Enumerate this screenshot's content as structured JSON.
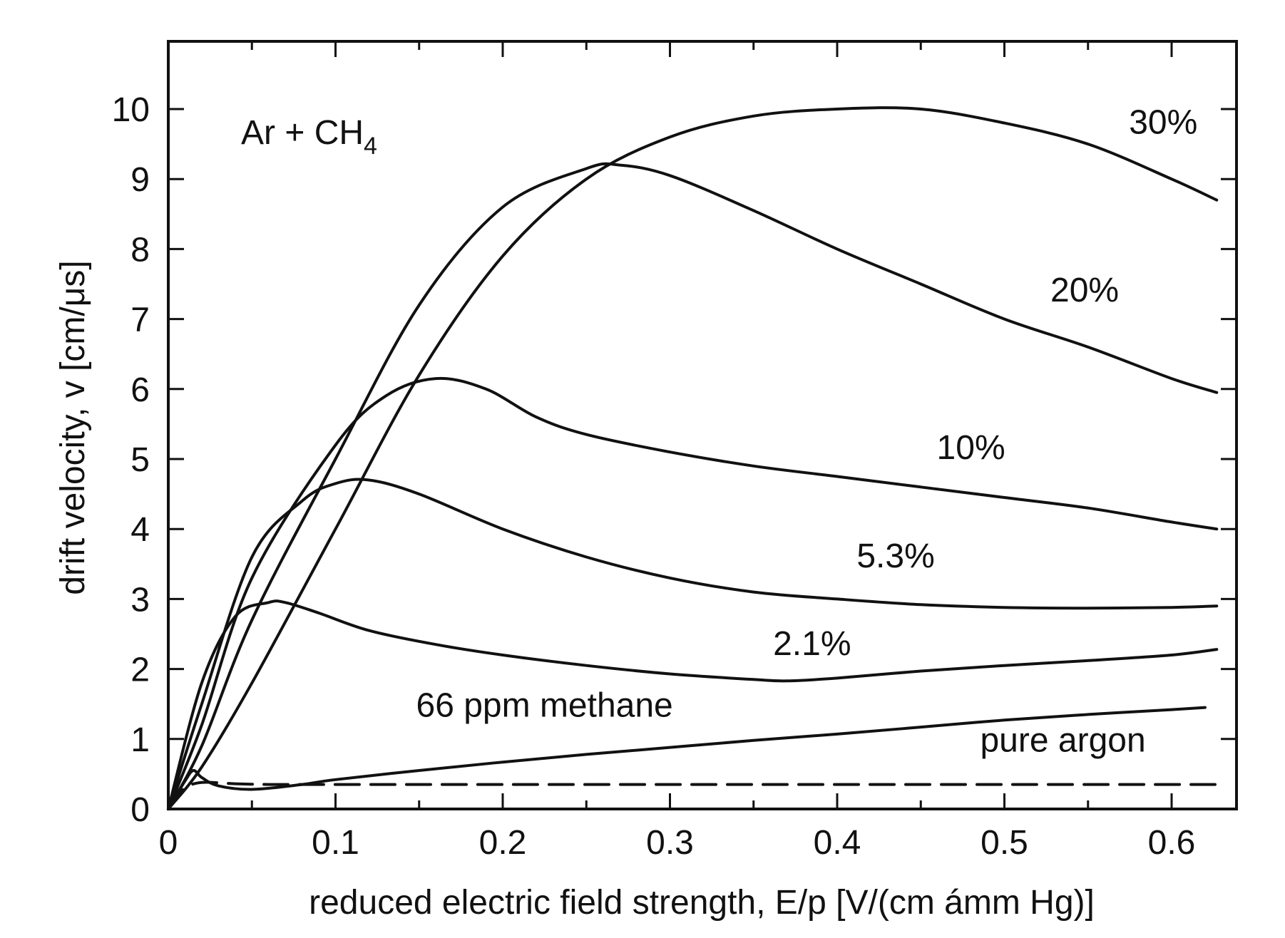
{
  "chart_data": {
    "type": "line",
    "title": "",
    "annotation": "Ar + CH",
    "annotation_sub": "4",
    "xlabel": "reduced electric field strength, E/p [V/(cm ámm Hg)]",
    "ylabel": "drift velocity, v [cm/μs]",
    "xlim": [
      0,
      0.63
    ],
    "ylim": [
      0,
      10.3
    ],
    "xticks": [
      "0",
      "0.1",
      "0.2",
      "0.3",
      "0.4",
      "0.5",
      "0.6"
    ],
    "yticks": [
      "0",
      "1",
      "2",
      "3",
      "4",
      "5",
      "6",
      "7",
      "8",
      "9",
      "10"
    ],
    "grid": false,
    "series": [
      {
        "name": "30%",
        "style": "solid",
        "x": [
          0,
          0.02,
          0.05,
          0.1,
          0.15,
          0.2,
          0.25,
          0.3,
          0.35,
          0.4,
          0.45,
          0.5,
          0.55,
          0.6,
          0.627
        ],
        "y": [
          0,
          0.6,
          1.8,
          4.0,
          6.2,
          7.9,
          9.0,
          9.6,
          9.9,
          10.0,
          10.0,
          9.8,
          9.5,
          9.0,
          8.7
        ]
      },
      {
        "name": "20%",
        "style": "solid",
        "x": [
          0,
          0.02,
          0.05,
          0.1,
          0.15,
          0.2,
          0.25,
          0.27,
          0.3,
          0.35,
          0.4,
          0.45,
          0.5,
          0.55,
          0.6,
          0.627
        ],
        "y": [
          0,
          0.9,
          2.7,
          5.0,
          7.2,
          8.6,
          9.15,
          9.2,
          9.05,
          8.55,
          8.0,
          7.5,
          7.0,
          6.6,
          6.15,
          5.95
        ]
      },
      {
        "name": "10%",
        "style": "solid",
        "x": [
          0,
          0.02,
          0.05,
          0.1,
          0.13,
          0.16,
          0.19,
          0.22,
          0.25,
          0.3,
          0.35,
          0.4,
          0.45,
          0.5,
          0.55,
          0.6,
          0.627
        ],
        "y": [
          0,
          1.2,
          3.3,
          5.2,
          5.9,
          6.15,
          6.0,
          5.6,
          5.35,
          5.1,
          4.9,
          4.75,
          4.6,
          4.45,
          4.3,
          4.1,
          4.0
        ]
      },
      {
        "name": "5.3%",
        "style": "solid",
        "x": [
          0,
          0.02,
          0.05,
          0.08,
          0.1,
          0.12,
          0.15,
          0.2,
          0.25,
          0.3,
          0.35,
          0.4,
          0.45,
          0.5,
          0.55,
          0.6,
          0.627
        ],
        "y": [
          0,
          1.5,
          3.6,
          4.4,
          4.65,
          4.7,
          4.5,
          4.0,
          3.6,
          3.3,
          3.1,
          3.0,
          2.92,
          2.88,
          2.87,
          2.88,
          2.9
        ]
      },
      {
        "name": "2.1%",
        "style": "solid",
        "x": [
          0,
          0.02,
          0.04,
          0.06,
          0.07,
          0.09,
          0.12,
          0.16,
          0.2,
          0.25,
          0.3,
          0.35,
          0.37,
          0.4,
          0.45,
          0.5,
          0.55,
          0.6,
          0.627
        ],
        "y": [
          0,
          1.8,
          2.75,
          2.95,
          2.95,
          2.8,
          2.55,
          2.35,
          2.2,
          2.05,
          1.93,
          1.85,
          1.83,
          1.87,
          1.97,
          2.05,
          2.12,
          2.2,
          2.28
        ]
      },
      {
        "name": "66 ppm methane",
        "style": "solid",
        "x": [
          0,
          0.01,
          0.015,
          0.02,
          0.03,
          0.05,
          0.08,
          0.1,
          0.15,
          0.2,
          0.25,
          0.3,
          0.35,
          0.4,
          0.45,
          0.5,
          0.55,
          0.6,
          0.62
        ],
        "y": [
          0,
          0.4,
          0.55,
          0.45,
          0.33,
          0.28,
          0.35,
          0.42,
          0.55,
          0.67,
          0.78,
          0.88,
          0.98,
          1.07,
          1.17,
          1.27,
          1.35,
          1.42,
          1.45
        ]
      },
      {
        "name": "pure argon",
        "style": "dashed",
        "x": [
          0,
          0.005,
          0.01,
          0.02,
          0.04,
          0.06,
          0.08,
          0.12,
          0.2,
          0.3,
          0.4,
          0.5,
          0.6,
          0.627
        ],
        "y": [
          0,
          0.15,
          0.3,
          0.38,
          0.36,
          0.35,
          0.35,
          0.35,
          0.35,
          0.35,
          0.35,
          0.35,
          0.35,
          0.35
        ]
      }
    ],
    "curve_labels": [
      {
        "series": 0,
        "text": "30%",
        "x": 0.595,
        "y": 9.65
      },
      {
        "series": 1,
        "text": "20%",
        "x": 0.548,
        "y": 7.25
      },
      {
        "series": 2,
        "text": "10%",
        "x": 0.48,
        "y": 5.0
      },
      {
        "series": 3,
        "text": "5.3%",
        "x": 0.435,
        "y": 3.45
      },
      {
        "series": 4,
        "text": "2.1%",
        "x": 0.385,
        "y": 2.2
      },
      {
        "series": 5,
        "text": "66 ppm methane",
        "x": 0.225,
        "y": 1.32
      },
      {
        "series": 6,
        "text": "pure argon",
        "x": 0.535,
        "y": 0.82
      }
    ]
  }
}
